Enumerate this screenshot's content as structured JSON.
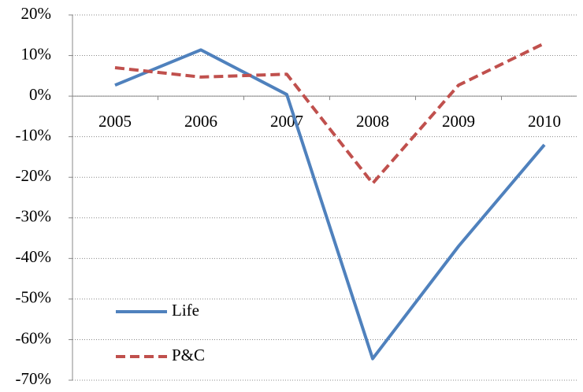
{
  "chart_data": {
    "type": "line",
    "categories": [
      "2005",
      "2006",
      "2007",
      "2008",
      "2009",
      "2010"
    ],
    "series": [
      {
        "name": "Life",
        "color": "#4f81bd",
        "dash": false,
        "values": [
          2.7,
          11.4,
          0.4,
          -64.7,
          -37,
          -12
        ]
      },
      {
        "name": "P&C",
        "color": "#c0504d",
        "dash": true,
        "values": [
          7,
          4.7,
          5.4,
          -21.5,
          2.7,
          13
        ]
      }
    ],
    "ylim": [
      -70,
      20
    ],
    "yticks": [
      {
        "value": -70,
        "label": "-70%"
      },
      {
        "value": -60,
        "label": "-60%"
      },
      {
        "value": -50,
        "label": "-50%"
      },
      {
        "value": -40,
        "label": "-40%"
      },
      {
        "value": -30,
        "label": "-30%"
      },
      {
        "value": -20,
        "label": "-20%"
      },
      {
        "value": -10,
        "label": "-10%"
      },
      {
        "value": 0,
        "label": "0%"
      },
      {
        "value": 10,
        "label": "10%"
      },
      {
        "value": 20,
        "label": "20%"
      }
    ],
    "grid": true
  }
}
